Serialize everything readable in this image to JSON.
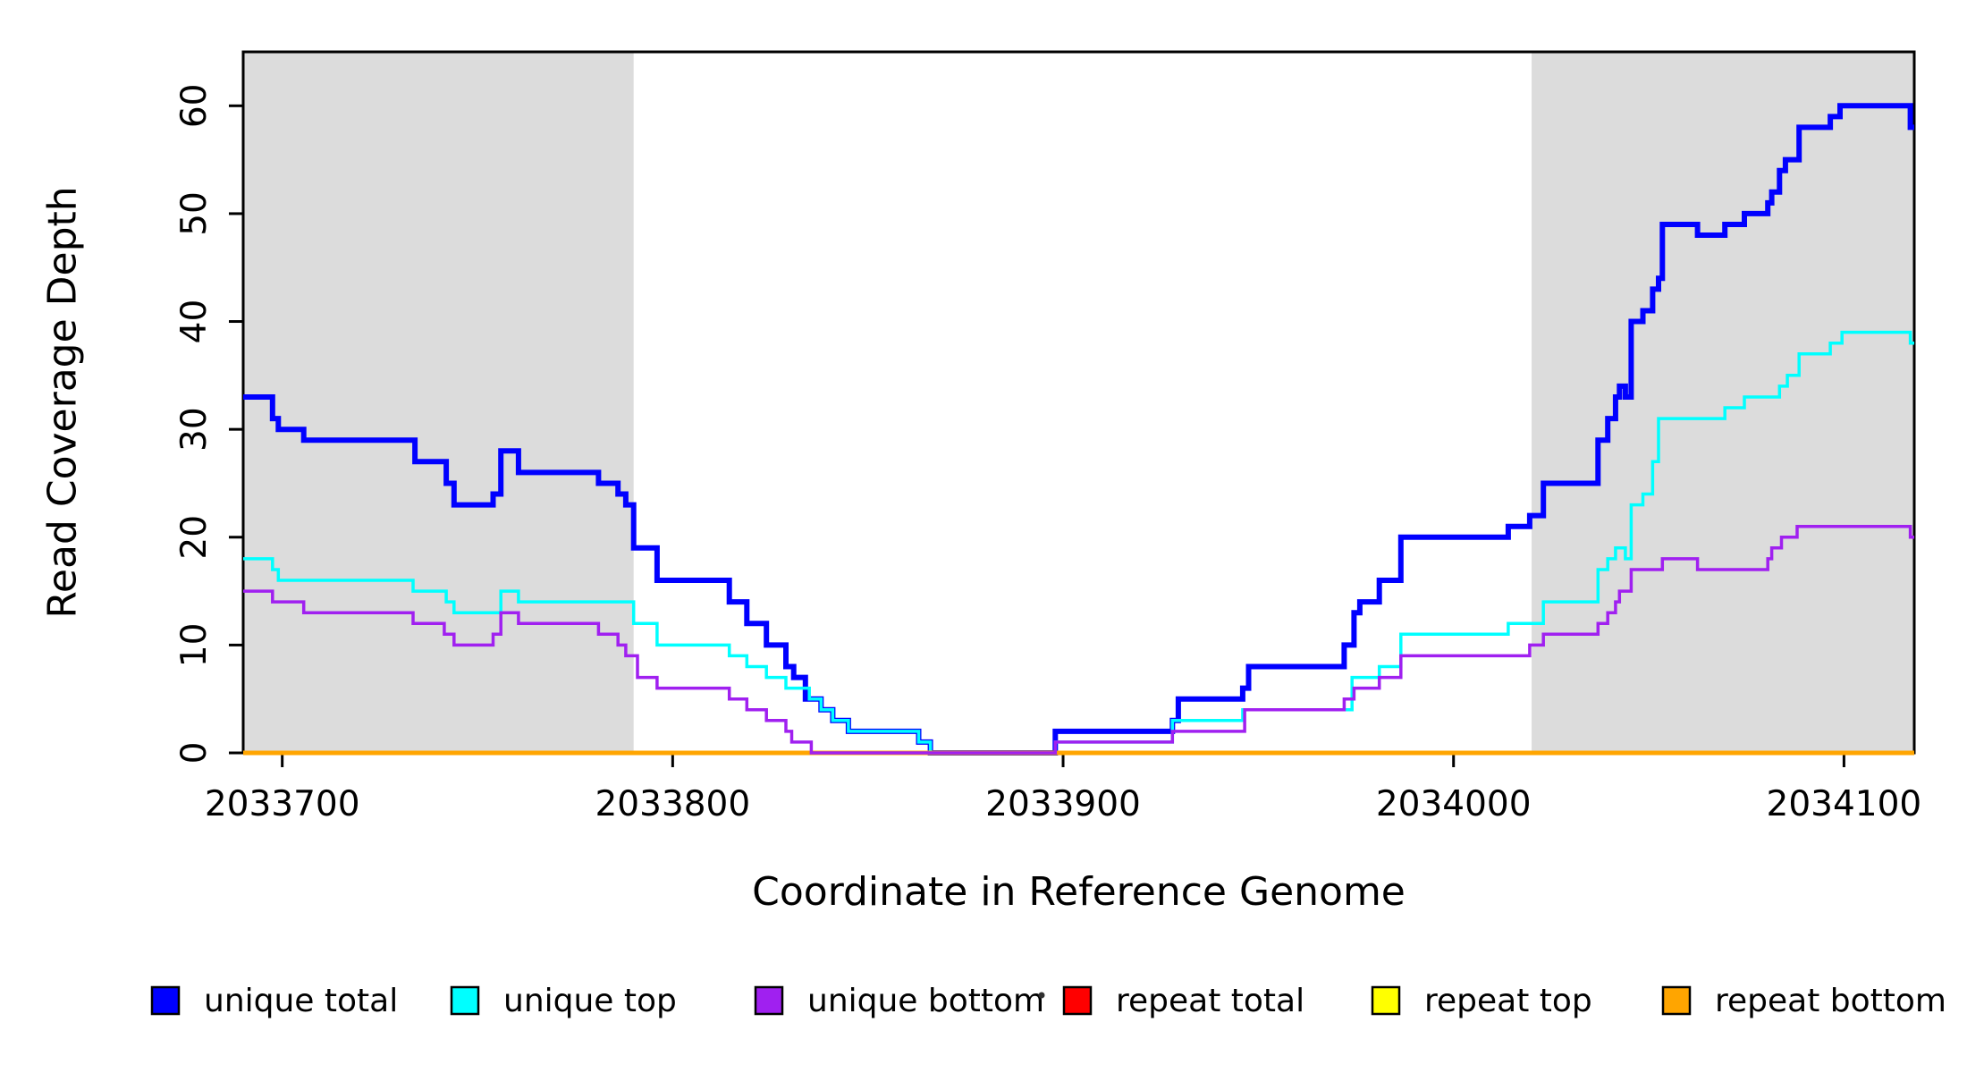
{
  "chart_data": {
    "type": "line",
    "step": true,
    "title": "",
    "xlabel": "Coordinate in Reference Genome",
    "ylabel": "Read Coverage Depth",
    "xlim": [
      2033690,
      2034118
    ],
    "ylim": [
      0,
      65
    ],
    "x_ticks": [
      "2033700",
      "2033800",
      "2033900",
      "2034000",
      "2034100"
    ],
    "x_tick_values": [
      2033700,
      2033800,
      2033900,
      2034000,
      2034100
    ],
    "y_ticks": [
      "0",
      "10",
      "20",
      "30",
      "40",
      "50",
      "60"
    ],
    "y_tick_values": [
      0,
      10,
      20,
      30,
      40,
      50,
      60
    ],
    "grid": false,
    "legend_position": "bottom",
    "background": "#FFFFFF",
    "shaded_regions": [
      {
        "from": 2033690,
        "to": 2033790,
        "color": "#DCDCDC"
      },
      {
        "from": 2034020,
        "to": 2034118,
        "color": "#DCDCDC"
      }
    ],
    "draw_order": [
      3,
      4,
      0,
      1,
      5,
      2
    ],
    "series": [
      {
        "name": "unique total",
        "color": "#0000FF",
        "line_width": 6,
        "points": [
          [
            2033690,
            33
          ],
          [
            2033697.5,
            31
          ],
          [
            2033699,
            30
          ],
          [
            2033705.5,
            29
          ],
          [
            2033734,
            27
          ],
          [
            2033742,
            25
          ],
          [
            2033744,
            23
          ],
          [
            2033754,
            24
          ],
          [
            2033756,
            28
          ],
          [
            2033760.5,
            26
          ],
          [
            2033781,
            25
          ],
          [
            2033786,
            24
          ],
          [
            2033788,
            23
          ],
          [
            2033790,
            19
          ],
          [
            2033796,
            16
          ],
          [
            2033814.5,
            14
          ],
          [
            2033819,
            12
          ],
          [
            2033824,
            10
          ],
          [
            2033829,
            8
          ],
          [
            2033831,
            7
          ],
          [
            2033834,
            5
          ],
          [
            2033838,
            4
          ],
          [
            2033841,
            3
          ],
          [
            2033845,
            2
          ],
          [
            2033863,
            1
          ],
          [
            2033866,
            0
          ],
          [
            2033898,
            2
          ],
          [
            2033928,
            3
          ],
          [
            2033929.5,
            5
          ],
          [
            2033946,
            6
          ],
          [
            2033947.5,
            8
          ],
          [
            2033972,
            10
          ],
          [
            2033974.5,
            13
          ],
          [
            2033976,
            14
          ],
          [
            2033981,
            16
          ],
          [
            2033986.5,
            20
          ],
          [
            2034014,
            21
          ],
          [
            2034019.5,
            22
          ],
          [
            2034023,
            25
          ],
          [
            2034037,
            29
          ],
          [
            2034039.5,
            31
          ],
          [
            2034041.5,
            33
          ],
          [
            2034042.5,
            34
          ],
          [
            2034044,
            33
          ],
          [
            2034045.5,
            40
          ],
          [
            2034048.5,
            41
          ],
          [
            2034051,
            43
          ],
          [
            2034052.5,
            44
          ],
          [
            2034053.5,
            49
          ],
          [
            2034062.5,
            48
          ],
          [
            2034069.5,
            49
          ],
          [
            2034074.5,
            50
          ],
          [
            2034080.5,
            51
          ],
          [
            2034081.5,
            52
          ],
          [
            2034083.5,
            54
          ],
          [
            2034085,
            55
          ],
          [
            2034088.5,
            58
          ],
          [
            2034096.5,
            59
          ],
          [
            2034099,
            60
          ],
          [
            2034117,
            58
          ]
        ]
      },
      {
        "name": "unique top",
        "color": "#00FFFF",
        "line_width": 3.5,
        "points": [
          [
            2033690,
            18
          ],
          [
            2033697.5,
            17
          ],
          [
            2033699,
            16
          ],
          [
            2033733.5,
            15
          ],
          [
            2033742,
            14
          ],
          [
            2033744,
            13
          ],
          [
            2033756,
            15
          ],
          [
            2033760.5,
            14
          ],
          [
            2033790,
            12
          ],
          [
            2033796,
            10
          ],
          [
            2033814.5,
            9
          ],
          [
            2033819,
            8
          ],
          [
            2033824,
            7
          ],
          [
            2033829,
            6
          ],
          [
            2033835,
            5
          ],
          [
            2033838,
            4
          ],
          [
            2033841,
            3
          ],
          [
            2033845,
            2
          ],
          [
            2033863,
            1
          ],
          [
            2033866,
            0
          ],
          [
            2033898,
            1
          ],
          [
            2033928,
            3
          ],
          [
            2033946,
            4
          ],
          [
            2033974,
            7
          ],
          [
            2033981,
            8
          ],
          [
            2033986.5,
            11
          ],
          [
            2034014,
            12
          ],
          [
            2034023,
            14
          ],
          [
            2034037,
            17
          ],
          [
            2034039.5,
            18
          ],
          [
            2034041.5,
            19
          ],
          [
            2034044,
            18
          ],
          [
            2034045.5,
            23
          ],
          [
            2034048.5,
            24
          ],
          [
            2034051,
            27
          ],
          [
            2034052.5,
            31
          ],
          [
            2034069.5,
            32
          ],
          [
            2034074.5,
            33
          ],
          [
            2034083.5,
            34
          ],
          [
            2034085.5,
            35
          ],
          [
            2034088.5,
            37
          ],
          [
            2034096.5,
            38
          ],
          [
            2034099.5,
            39
          ],
          [
            2034117,
            38
          ]
        ]
      },
      {
        "name": "unique bottom",
        "color": "#A020F0",
        "line_width": 3.5,
        "points": [
          [
            2033690,
            15
          ],
          [
            2033697.5,
            14
          ],
          [
            2033705.5,
            13
          ],
          [
            2033733.5,
            12
          ],
          [
            2033741.5,
            11
          ],
          [
            2033744,
            10
          ],
          [
            2033754,
            11
          ],
          [
            2033756,
            13
          ],
          [
            2033760.5,
            12
          ],
          [
            2033781,
            11
          ],
          [
            2033786,
            10
          ],
          [
            2033788,
            9
          ],
          [
            2033791,
            7
          ],
          [
            2033796,
            6
          ],
          [
            2033814.5,
            5
          ],
          [
            2033819,
            4
          ],
          [
            2033824,
            3
          ],
          [
            2033829,
            2
          ],
          [
            2033830.5,
            1
          ],
          [
            2033835.5,
            0
          ],
          [
            2033898,
            1
          ],
          [
            2033928,
            2
          ],
          [
            2033946.5,
            4
          ],
          [
            2033972,
            5
          ],
          [
            2033974.5,
            6
          ],
          [
            2033981,
            7
          ],
          [
            2033986.5,
            9
          ],
          [
            2034019.5,
            10
          ],
          [
            2034023,
            11
          ],
          [
            2034037,
            12
          ],
          [
            2034039.5,
            13
          ],
          [
            2034041.5,
            14
          ],
          [
            2034042.5,
            15
          ],
          [
            2034045.5,
            17
          ],
          [
            2034053.5,
            18
          ],
          [
            2034062.5,
            17
          ],
          [
            2034080.5,
            18
          ],
          [
            2034081.5,
            19
          ],
          [
            2034084,
            20
          ],
          [
            2034088,
            21
          ],
          [
            2034117,
            20
          ]
        ]
      },
      {
        "name": "repeat total",
        "color": "#FF0000",
        "line_width": 3.5,
        "points": [
          [
            2033690,
            0
          ]
        ]
      },
      {
        "name": "repeat top",
        "color": "#FFFF00",
        "line_width": 3.5,
        "points": [
          [
            2033690,
            0
          ]
        ]
      },
      {
        "name": "repeat bottom",
        "color": "#FFA500",
        "line_width": 5,
        "points": [
          [
            2033690,
            0
          ]
        ]
      }
    ]
  },
  "legend": {
    "entries": [
      {
        "label": "unique total",
        "color": "#0000FF"
      },
      {
        "label": "unique top",
        "color": "#00FFFF"
      },
      {
        "label": "unique bottom",
        "color": "#A020F0"
      },
      {
        "label": "repeat total",
        "color": "#FF0000"
      },
      {
        "label": "repeat top",
        "color": "#FFFF00"
      },
      {
        "label": "repeat bottom",
        "color": "#FFA500"
      }
    ],
    "stray_dot": "."
  }
}
